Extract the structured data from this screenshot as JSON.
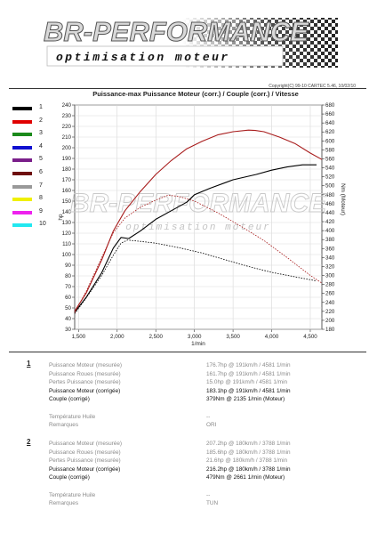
{
  "header": {
    "brand": "BR-PERFORMANCE",
    "tagline": "optimisation moteur",
    "copyright": "Copyright(C) 99-10 CARTEC 5.46, 10/02/10"
  },
  "chart_data": {
    "type": "line",
    "title": "Puissance-max Puissance Moteur (corr.) / Couple (corr.) / Vitesse",
    "xlabel": "1/min",
    "ylabel_left": "hp",
    "ylabel_right": "Nm (Moteur)",
    "xlim": [
      1450,
      4650
    ],
    "ylim_left": [
      30,
      240
    ],
    "ylim_right": [
      180,
      680
    ],
    "x_ticks": [
      1500,
      2000,
      2500,
      3000,
      3500,
      4000,
      4500
    ],
    "x_tick_labels": [
      "1,500",
      "2,000",
      "2,500",
      "3,000",
      "3,500",
      "4,000",
      "4,500"
    ],
    "y_left_ticks": [
      30,
      40,
      50,
      60,
      70,
      80,
      90,
      100,
      110,
      120,
      130,
      140,
      150,
      160,
      170,
      180,
      190,
      200,
      210,
      220,
      230,
      240
    ],
    "y_right_ticks": [
      180,
      200,
      220,
      240,
      260,
      280,
      300,
      320,
      340,
      360,
      380,
      400,
      420,
      440,
      460,
      480,
      500,
      520,
      540,
      560,
      580,
      600,
      620,
      640,
      660,
      680
    ],
    "grid": true,
    "legend": {
      "placement": "left",
      "entries": [
        {
          "label": "1",
          "color": "#000000"
        },
        {
          "label": "2",
          "color": "#e00000"
        },
        {
          "label": "3",
          "color": "#1b8a1b"
        },
        {
          "label": "4",
          "color": "#1010d0"
        },
        {
          "label": "5",
          "color": "#7a1f8a"
        },
        {
          "label": "6",
          "color": "#6e0d0d"
        },
        {
          "label": "7",
          "color": "#999999"
        },
        {
          "label": "8",
          "color": "#f0f000"
        },
        {
          "label": "9",
          "color": "#ee22ee"
        },
        {
          "label": "10",
          "color": "#22e8f0"
        }
      ]
    },
    "series": [
      {
        "name": "1",
        "kind": "power",
        "axis": "left",
        "color": "#000000",
        "dash": "solid",
        "points": [
          [
            1450,
            46
          ],
          [
            1600,
            60
          ],
          [
            1800,
            83
          ],
          [
            1950,
            106
          ],
          [
            2050,
            116
          ],
          [
            2150,
            115
          ],
          [
            2300,
            122
          ],
          [
            2500,
            133
          ],
          [
            2700,
            141
          ],
          [
            2900,
            149
          ],
          [
            3000,
            156
          ],
          [
            3200,
            162
          ],
          [
            3500,
            170
          ],
          [
            3800,
            175
          ],
          [
            4000,
            179
          ],
          [
            4200,
            182
          ],
          [
            4400,
            184
          ],
          [
            4581,
            184
          ]
        ]
      },
      {
        "name": "2",
        "kind": "power",
        "axis": "left",
        "color": "#a81c1c",
        "dash": "solid",
        "points": [
          [
            1450,
            47
          ],
          [
            1600,
            64
          ],
          [
            1800,
            95
          ],
          [
            1950,
            122
          ],
          [
            2100,
            141
          ],
          [
            2300,
            159
          ],
          [
            2500,
            175
          ],
          [
            2700,
            188
          ],
          [
            2900,
            199
          ],
          [
            3100,
            206
          ],
          [
            3300,
            212
          ],
          [
            3500,
            215
          ],
          [
            3700,
            216.5
          ],
          [
            3788,
            216.2
          ],
          [
            3900,
            215
          ],
          [
            4100,
            210
          ],
          [
            4300,
            204
          ],
          [
            4500,
            195
          ],
          [
            4650,
            189
          ]
        ]
      },
      {
        "name": "1",
        "kind": "torque",
        "axis": "right",
        "color": "#000000",
        "dash": "dashed",
        "points": [
          [
            1450,
            215
          ],
          [
            1600,
            250
          ],
          [
            1800,
            300
          ],
          [
            1950,
            345
          ],
          [
            2050,
            372
          ],
          [
            2135,
            379
          ],
          [
            2300,
            376
          ],
          [
            2500,
            372
          ],
          [
            2800,
            362
          ],
          [
            3100,
            350
          ],
          [
            3400,
            335
          ],
          [
            3700,
            320
          ],
          [
            4000,
            307
          ],
          [
            4300,
            297
          ],
          [
            4581,
            288
          ]
        ]
      },
      {
        "name": "2",
        "kind": "torque",
        "axis": "right",
        "color": "#a81c1c",
        "dash": "dashed",
        "points": [
          [
            1450,
            217
          ],
          [
            1600,
            265
          ],
          [
            1800,
            340
          ],
          [
            1950,
            395
          ],
          [
            2100,
            428
          ],
          [
            2300,
            452
          ],
          [
            2500,
            468
          ],
          [
            2661,
            479
          ],
          [
            2800,
            476
          ],
          [
            3000,
            466
          ],
          [
            3300,
            440
          ],
          [
            3600,
            410
          ],
          [
            3900,
            378
          ],
          [
            4200,
            340
          ],
          [
            4500,
            300
          ],
          [
            4650,
            283
          ]
        ]
      }
    ]
  },
  "report": {
    "sections": [
      {
        "number": "1",
        "rows": [
          {
            "label": "Puissance Moteur (mesurée)",
            "value": "176.7hp @ 191km/h / 4581 1/min",
            "style": "muted"
          },
          {
            "label": "Puissance Roues (mesurée)",
            "value": "161.7hp @ 191km/h / 4581 1/min",
            "style": "muted"
          },
          {
            "label": "Pertes Puissance (mesurée)",
            "value": "15.0hp @ 191km/h / 4581 1/min",
            "style": "muted"
          },
          {
            "label": "Puissance Moteur (corrigée)",
            "value": "183.1hp @ 191km/h / 4581 1/min",
            "style": "strong"
          },
          {
            "label": "Couple (corrigé)",
            "value": "379Nm @ 2135 1/min (Moteur)",
            "style": "strong"
          },
          {
            "label": "",
            "value": "",
            "style": "muted"
          },
          {
            "label": "Température Huile",
            "value": "--",
            "style": "muted"
          },
          {
            "label": "Remarques",
            "value": "ORI",
            "style": "muted"
          }
        ]
      },
      {
        "number": "2",
        "rows": [
          {
            "label": "Puissance Moteur (mesurée)",
            "value": "207.2hp @ 180km/h / 3788 1/min",
            "style": "muted"
          },
          {
            "label": "Puissance Roues (mesurée)",
            "value": "185.6hp @ 180km/h / 3788 1/min",
            "style": "muted"
          },
          {
            "label": "Pertes Puissance (mesurée)",
            "value": "21.6hp @ 180km/h / 3788 1/min",
            "style": "muted"
          },
          {
            "label": "Puissance Moteur (corrigée)",
            "value": "216.2hp @ 180km/h / 3788 1/min",
            "style": "strong"
          },
          {
            "label": "Couple (corrigé)",
            "value": "479Nm @ 2661 1/min (Moteur)",
            "style": "strong"
          },
          {
            "label": "",
            "value": "",
            "style": "muted"
          },
          {
            "label": "Température Huile",
            "value": "--",
            "style": "muted"
          },
          {
            "label": "Remarques",
            "value": "TUN",
            "style": "muted"
          }
        ]
      }
    ]
  }
}
